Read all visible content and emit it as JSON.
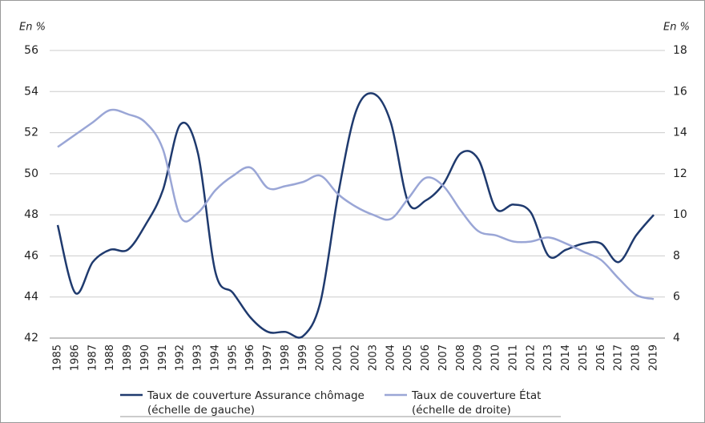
{
  "chart_data": {
    "type": "line",
    "y_unit": "En %",
    "y2_unit": "En %",
    "categories": [
      "1985",
      "1986",
      "1987",
      "1988",
      "1989",
      "1990",
      "1991",
      "1992",
      "1993",
      "1994",
      "1995",
      "1996",
      "1997",
      "1998",
      "1999",
      "2000",
      "2001",
      "2002",
      "2003",
      "2004",
      "2005",
      "2006",
      "2007",
      "2008",
      "2009",
      "2010",
      "2011",
      "2012",
      "2013",
      "2014",
      "2015",
      "2016",
      "2017",
      "2018",
      "2019"
    ],
    "ylim": [
      42,
      56
    ],
    "yticks": [
      42,
      44,
      46,
      48,
      50,
      52,
      54,
      56
    ],
    "y2lim": [
      4,
      18
    ],
    "y2ticks": [
      4,
      6,
      8,
      10,
      12,
      14,
      16,
      18
    ],
    "grid": true,
    "series": [
      {
        "name": "Taux de couverture Assurance chômage",
        "note": "(échelle de gauche)",
        "color": "#1f3a6e",
        "axis": "y",
        "values": [
          47.5,
          44.2,
          45.7,
          46.3,
          46.3,
          47.5,
          49.2,
          52.4,
          51.0,
          45.2,
          44.2,
          43.0,
          42.3,
          42.3,
          42.1,
          43.8,
          49.0,
          53.0,
          53.9,
          52.5,
          48.6,
          48.7,
          49.5,
          51.0,
          50.7,
          48.3,
          48.5,
          48.1,
          46.0,
          46.3,
          46.6,
          46.6,
          45.7,
          47.0,
          48.0
        ]
      },
      {
        "name": "Taux de couverture État",
        "note": "(échelle de droite)",
        "color": "#9aa6d6",
        "axis": "y2",
        "values": [
          13.3,
          13.9,
          14.5,
          15.1,
          14.9,
          14.5,
          13.2,
          9.9,
          10.1,
          11.2,
          11.9,
          12.3,
          11.3,
          11.4,
          11.6,
          11.9,
          11.0,
          10.4,
          10.0,
          9.8,
          10.8,
          11.8,
          11.4,
          10.2,
          9.2,
          9.0,
          8.7,
          8.7,
          8.9,
          8.6,
          8.2,
          7.8,
          6.9,
          6.1,
          5.9
        ]
      }
    ]
  }
}
